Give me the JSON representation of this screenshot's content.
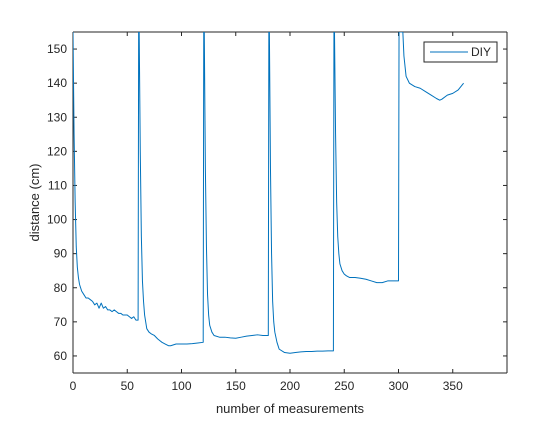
{
  "chart_data": {
    "type": "line",
    "title": "",
    "xlabel": "number of measurements",
    "ylabel": "distance (cm)",
    "xlim": [
      0,
      400
    ],
    "ylim": [
      55,
      155
    ],
    "xticks": [
      0,
      50,
      100,
      150,
      200,
      250,
      300,
      350
    ],
    "yticks": [
      60,
      70,
      80,
      90,
      100,
      110,
      120,
      130,
      140,
      150
    ],
    "legend_position": "top-right",
    "grid": false,
    "series": [
      {
        "name": "DIY",
        "color": "#0072BD",
        "x": [
          0,
          1,
          2,
          3,
          4,
          5,
          6,
          7,
          8,
          10,
          12,
          14,
          16,
          18,
          20,
          22,
          24,
          26,
          28,
          30,
          32,
          34,
          36,
          38,
          40,
          42,
          44,
          46,
          48,
          50,
          52,
          54,
          56,
          58,
          60,
          60.5,
          61,
          62,
          63,
          64,
          65,
          66,
          68,
          70,
          72,
          75,
          78,
          80,
          82,
          85,
          88,
          90,
          95,
          100,
          105,
          110,
          115,
          120,
          120.5,
          121,
          122,
          123,
          124,
          125,
          126,
          128,
          130,
          135,
          140,
          145,
          150,
          155,
          160,
          165,
          170,
          175,
          180,
          180.5,
          181,
          182,
          183,
          184,
          185,
          186,
          188,
          190,
          195,
          200,
          205,
          210,
          215,
          220,
          225,
          230,
          235,
          240,
          240.5,
          241,
          242,
          243,
          244,
          245,
          246,
          248,
          250,
          252,
          255,
          258,
          260,
          265,
          270,
          275,
          280,
          285,
          290,
          295,
          300,
          300.5,
          301,
          302,
          303,
          304,
          305,
          307,
          310,
          315,
          320,
          325,
          330,
          335,
          338,
          340,
          345,
          350,
          355,
          360
        ],
        "values": [
          155,
          125,
          105,
          92,
          86,
          83,
          81,
          80,
          79,
          78,
          77,
          77,
          76.5,
          76,
          75,
          75.5,
          74,
          75.5,
          74,
          74.5,
          73.5,
          73.5,
          73,
          73.5,
          73,
          72.5,
          72.5,
          72,
          72,
          72,
          71.5,
          71,
          71.5,
          70.5,
          70.5,
          155,
          155,
          120,
          95,
          82,
          76,
          72,
          68,
          67,
          66.5,
          66,
          65,
          64.5,
          64,
          63.5,
          63,
          63,
          63.5,
          63.5,
          63.5,
          63.6,
          63.8,
          64,
          155,
          155,
          115,
          92,
          78,
          72,
          69,
          67,
          66,
          65.5,
          65.5,
          65.3,
          65.2,
          65.5,
          65.8,
          66,
          66.2,
          66,
          66,
          155,
          155,
          115,
          90,
          76,
          70,
          67,
          64,
          62,
          61,
          60.8,
          61,
          61.2,
          61.3,
          61.3,
          61.4,
          61.4,
          61.5,
          61.5,
          155,
          155,
          125,
          105,
          95,
          90,
          87,
          85,
          84,
          83.5,
          83,
          83,
          83,
          82.8,
          82.5,
          82,
          81.5,
          81.5,
          82,
          82,
          82,
          155,
          155,
          155,
          155,
          155,
          148,
          142,
          140,
          139,
          138.5,
          137.5,
          136.5,
          135.5,
          135,
          135.3,
          136.5,
          137,
          138,
          140
        ]
      }
    ]
  }
}
